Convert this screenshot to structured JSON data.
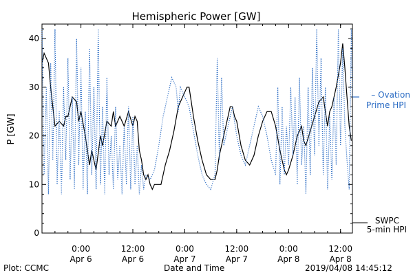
{
  "chart_data": {
    "type": "line",
    "title": "Hemispheric Power [GW]",
    "ylabel": "P [GW]",
    "xlabel": "Date and Time",
    "ylim": [
      0,
      43
    ],
    "yticks": [
      0,
      10,
      20,
      30,
      40
    ],
    "xlim": [
      "2019-04-05T15:00",
      "2019-04-08T14:45"
    ],
    "xticks": [
      {
        "t": "2019-04-06T00:00",
        "time": "0:00",
        "date": "Apr 6"
      },
      {
        "t": "2019-04-06T12:00",
        "time": "12:00",
        "date": "Apr 6"
      },
      {
        "t": "2019-04-07T00:00",
        "time": "0:00",
        "date": "Apr 7"
      },
      {
        "t": "2019-04-07T12:00",
        "time": "12:00",
        "date": "Apr 7"
      },
      {
        "t": "2019-04-08T00:00",
        "time": "0:00",
        "date": "Apr 8"
      },
      {
        "t": "2019-04-08T12:00",
        "time": "12:00",
        "date": "Apr 8"
      }
    ],
    "grid": false,
    "series": [
      {
        "name": "SWPC 5-min HPI",
        "legend_lines": [
          "SWPC",
          "5-min HPI"
        ],
        "style": "solid",
        "color": "#000000",
        "points": [
          [
            "2019-04-05T15:00",
            35
          ],
          [
            "2019-04-05T15:30",
            37
          ],
          [
            "2019-04-05T16:30",
            35
          ],
          [
            "2019-04-05T17:00",
            30
          ],
          [
            "2019-04-05T17:30",
            26
          ],
          [
            "2019-04-05T18:00",
            22
          ],
          [
            "2019-04-05T19:00",
            23
          ],
          [
            "2019-04-05T20:00",
            22
          ],
          [
            "2019-04-05T20:30",
            24
          ],
          [
            "2019-04-05T21:00",
            24
          ],
          [
            "2019-04-05T22:00",
            28
          ],
          [
            "2019-04-05T23:00",
            27
          ],
          [
            "2019-04-05T23:30",
            23
          ],
          [
            "2019-04-06T00:00",
            25
          ],
          [
            "2019-04-06T01:00",
            20
          ],
          [
            "2019-04-06T02:00",
            14
          ],
          [
            "2019-04-06T02:30",
            17
          ],
          [
            "2019-04-06T03:00",
            15
          ],
          [
            "2019-04-06T03:30",
            13
          ],
          [
            "2019-04-06T04:30",
            20
          ],
          [
            "2019-04-06T05:00",
            18
          ],
          [
            "2019-04-06T06:00",
            23
          ],
          [
            "2019-04-06T07:00",
            22
          ],
          [
            "2019-04-06T07:30",
            25
          ],
          [
            "2019-04-06T08:00",
            22
          ],
          [
            "2019-04-06T09:00",
            24
          ],
          [
            "2019-04-06T10:00",
            22
          ],
          [
            "2019-04-06T11:00",
            25
          ],
          [
            "2019-04-06T12:00",
            22
          ],
          [
            "2019-04-06T12:30",
            24
          ],
          [
            "2019-04-06T13:00",
            23
          ],
          [
            "2019-04-06T13:30",
            17
          ],
          [
            "2019-04-06T14:00",
            15
          ],
          [
            "2019-04-06T14:30",
            12
          ],
          [
            "2019-04-06T15:00",
            11
          ],
          [
            "2019-04-06T15:30",
            12
          ],
          [
            "2019-04-06T16:00",
            10
          ],
          [
            "2019-04-06T16:30",
            9
          ],
          [
            "2019-04-06T17:00",
            10
          ],
          [
            "2019-04-06T18:30",
            10
          ],
          [
            "2019-04-06T19:00",
            12
          ],
          [
            "2019-04-06T19:30",
            14
          ],
          [
            "2019-04-06T20:30",
            17
          ],
          [
            "2019-04-06T21:30",
            21
          ],
          [
            "2019-04-06T22:30",
            26
          ],
          [
            "2019-04-06T23:30",
            28
          ],
          [
            "2019-04-07T00:30",
            30
          ],
          [
            "2019-04-07T01:00",
            30
          ],
          [
            "2019-04-07T01:30",
            27
          ],
          [
            "2019-04-07T02:00",
            24
          ],
          [
            "2019-04-07T03:00",
            19
          ],
          [
            "2019-04-07T04:00",
            15
          ],
          [
            "2019-04-07T05:00",
            12
          ],
          [
            "2019-04-07T06:00",
            11
          ],
          [
            "2019-04-07T07:00",
            11
          ],
          [
            "2019-04-07T07:30",
            13
          ],
          [
            "2019-04-07T08:00",
            16
          ],
          [
            "2019-04-07T09:00",
            20
          ],
          [
            "2019-04-07T10:00",
            24
          ],
          [
            "2019-04-07T10:30",
            26
          ],
          [
            "2019-04-07T11:00",
            26
          ],
          [
            "2019-04-07T11:30",
            24
          ],
          [
            "2019-04-07T12:00",
            23
          ],
          [
            "2019-04-07T13:00",
            18
          ],
          [
            "2019-04-07T14:00",
            15
          ],
          [
            "2019-04-07T15:00",
            14
          ],
          [
            "2019-04-07T16:00",
            16
          ],
          [
            "2019-04-07T17:00",
            20
          ],
          [
            "2019-04-07T18:00",
            23
          ],
          [
            "2019-04-07T19:00",
            25
          ],
          [
            "2019-04-07T20:00",
            25
          ],
          [
            "2019-04-07T21:00",
            22
          ],
          [
            "2019-04-07T22:00",
            17
          ],
          [
            "2019-04-07T23:00",
            13
          ],
          [
            "2019-04-07T23:30",
            12
          ],
          [
            "2019-04-08T00:00",
            13
          ],
          [
            "2019-04-08T01:00",
            16
          ],
          [
            "2019-04-08T02:00",
            20
          ],
          [
            "2019-04-08T03:00",
            22
          ],
          [
            "2019-04-08T03:30",
            19
          ],
          [
            "2019-04-08T04:00",
            18
          ],
          [
            "2019-04-08T05:00",
            21
          ],
          [
            "2019-04-08T06:00",
            24
          ],
          [
            "2019-04-08T07:00",
            27
          ],
          [
            "2019-04-08T08:00",
            28
          ],
          [
            "2019-04-08T08:30",
            25
          ],
          [
            "2019-04-08T09:00",
            22
          ],
          [
            "2019-04-08T09:30",
            25
          ],
          [
            "2019-04-08T10:00",
            26
          ],
          [
            "2019-04-08T11:00",
            30
          ],
          [
            "2019-04-08T12:00",
            35
          ],
          [
            "2019-04-08T12:30",
            39
          ],
          [
            "2019-04-08T13:00",
            34
          ],
          [
            "2019-04-08T13:30",
            28
          ],
          [
            "2019-04-08T14:00",
            22
          ],
          [
            "2019-04-08T14:30",
            19
          ]
        ]
      },
      {
        "name": "Ovation Prime HPI",
        "legend_lines": [
          "– Ovation",
          "Prime HPI"
        ],
        "style": "dotted",
        "color": "#2b6cc4",
        "points": [
          [
            "2019-04-05T15:00",
            42
          ],
          [
            "2019-04-05T15:30",
            12
          ],
          [
            "2019-04-05T16:00",
            30
          ],
          [
            "2019-04-05T16:30",
            8
          ],
          [
            "2019-04-05T17:00",
            35
          ],
          [
            "2019-04-05T17:30",
            15
          ],
          [
            "2019-04-05T18:00",
            42
          ],
          [
            "2019-04-05T18:30",
            10
          ],
          [
            "2019-04-05T19:00",
            25
          ],
          [
            "2019-04-05T19:30",
            8
          ],
          [
            "2019-04-05T20:00",
            30
          ],
          [
            "2019-04-05T20:30",
            15
          ],
          [
            "2019-04-05T21:00",
            36
          ],
          [
            "2019-04-05T21:30",
            11
          ],
          [
            "2019-04-05T22:00",
            28
          ],
          [
            "2019-04-05T22:30",
            9
          ],
          [
            "2019-04-05T23:00",
            40
          ],
          [
            "2019-04-05T23:30",
            14
          ],
          [
            "2019-04-06T00:00",
            34
          ],
          [
            "2019-04-06T00:30",
            9
          ],
          [
            "2019-04-06T01:00",
            25
          ],
          [
            "2019-04-06T01:30",
            8
          ],
          [
            "2019-04-06T02:00",
            38
          ],
          [
            "2019-04-06T02:30",
            12
          ],
          [
            "2019-04-06T03:00",
            30
          ],
          [
            "2019-04-06T03:30",
            9
          ],
          [
            "2019-04-06T04:00",
            42
          ],
          [
            "2019-04-06T04:30",
            10
          ],
          [
            "2019-04-06T05:00",
            26
          ],
          [
            "2019-04-06T05:30",
            8
          ],
          [
            "2019-04-06T06:00",
            32
          ],
          [
            "2019-04-06T06:30",
            12
          ],
          [
            "2019-04-06T07:00",
            20
          ],
          [
            "2019-04-06T07:30",
            9
          ],
          [
            "2019-04-06T08:00",
            26
          ],
          [
            "2019-04-06T08:30",
            11
          ],
          [
            "2019-04-06T09:00",
            18
          ],
          [
            "2019-04-06T09:30",
            8
          ],
          [
            "2019-04-06T10:00",
            22
          ],
          [
            "2019-04-06T10:30",
            10
          ],
          [
            "2019-04-06T11:00",
            26
          ],
          [
            "2019-04-06T11:30",
            9
          ],
          [
            "2019-04-06T12:00",
            24
          ],
          [
            "2019-04-06T12:30",
            10
          ],
          [
            "2019-04-06T13:00",
            18
          ],
          [
            "2019-04-06T13:30",
            8
          ],
          [
            "2019-04-06T14:00",
            14
          ],
          [
            "2019-04-06T14:30",
            9
          ],
          [
            "2019-04-06T15:00",
            12
          ],
          [
            "2019-04-06T16:00",
            11
          ],
          [
            "2019-04-06T17:00",
            13
          ],
          [
            "2019-04-06T18:00",
            18
          ],
          [
            "2019-04-06T19:00",
            24
          ],
          [
            "2019-04-06T20:00",
            28
          ],
          [
            "2019-04-06T21:00",
            32
          ],
          [
            "2019-04-06T22:00",
            30
          ],
          [
            "2019-04-06T22:30",
            25
          ],
          [
            "2019-04-06T23:00",
            30
          ],
          [
            "2019-04-07T00:00",
            28
          ],
          [
            "2019-04-07T01:00",
            26
          ],
          [
            "2019-04-07T02:00",
            21
          ],
          [
            "2019-04-07T03:00",
            16
          ],
          [
            "2019-04-07T04:00",
            12
          ],
          [
            "2019-04-07T05:00",
            10
          ],
          [
            "2019-04-07T06:00",
            9
          ],
          [
            "2019-04-07T07:00",
            12
          ],
          [
            "2019-04-07T07:30",
            36
          ],
          [
            "2019-04-07T08:00",
            15
          ],
          [
            "2019-04-07T08:30",
            32
          ],
          [
            "2019-04-07T09:00",
            18
          ],
          [
            "2019-04-07T10:00",
            22
          ],
          [
            "2019-04-07T11:00",
            26
          ],
          [
            "2019-04-07T12:00",
            20
          ],
          [
            "2019-04-07T13:00",
            16
          ],
          [
            "2019-04-07T14:00",
            14
          ],
          [
            "2019-04-07T15:00",
            18
          ],
          [
            "2019-04-07T16:00",
            22
          ],
          [
            "2019-04-07T17:00",
            26
          ],
          [
            "2019-04-07T18:00",
            24
          ],
          [
            "2019-04-07T19:00",
            20
          ],
          [
            "2019-04-07T20:00",
            15
          ],
          [
            "2019-04-07T21:00",
            12
          ],
          [
            "2019-04-07T21:30",
            30
          ],
          [
            "2019-04-07T22:00",
            10
          ],
          [
            "2019-04-07T22:30",
            26
          ],
          [
            "2019-04-07T23:00",
            12
          ],
          [
            "2019-04-07T23:30",
            22
          ],
          [
            "2019-04-08T00:00",
            14
          ],
          [
            "2019-04-08T00:30",
            30
          ],
          [
            "2019-04-08T01:00",
            16
          ],
          [
            "2019-04-08T01:30",
            28
          ],
          [
            "2019-04-08T02:00",
            10
          ],
          [
            "2019-04-08T02:30",
            32
          ],
          [
            "2019-04-08T03:00",
            14
          ],
          [
            "2019-04-08T03:30",
            22
          ],
          [
            "2019-04-08T04:00",
            8
          ],
          [
            "2019-04-08T04:30",
            30
          ],
          [
            "2019-04-08T05:00",
            12
          ],
          [
            "2019-04-08T05:30",
            34
          ],
          [
            "2019-04-08T06:00",
            16
          ],
          [
            "2019-04-08T06:30",
            42
          ],
          [
            "2019-04-08T07:00",
            18
          ],
          [
            "2019-04-08T07:30",
            36
          ],
          [
            "2019-04-08T08:00",
            12
          ],
          [
            "2019-04-08T08:30",
            30
          ],
          [
            "2019-04-08T09:00",
            9
          ],
          [
            "2019-04-08T09:30",
            24
          ],
          [
            "2019-04-08T10:00",
            11
          ],
          [
            "2019-04-08T10:30",
            28
          ],
          [
            "2019-04-08T11:00",
            14
          ],
          [
            "2019-04-08T11:30",
            42
          ],
          [
            "2019-04-08T12:00",
            18
          ],
          [
            "2019-04-08T12:30",
            38
          ],
          [
            "2019-04-08T13:00",
            22
          ],
          [
            "2019-04-08T13:30",
            15
          ],
          [
            "2019-04-08T14:00",
            9
          ],
          [
            "2019-04-08T14:30",
            42
          ],
          [
            "2019-04-08T14:45",
            28
          ]
        ]
      }
    ]
  },
  "footer": {
    "left": "Plot: CCMC",
    "center": "Date and Time",
    "right": "2019/04/08 14:45:12"
  }
}
